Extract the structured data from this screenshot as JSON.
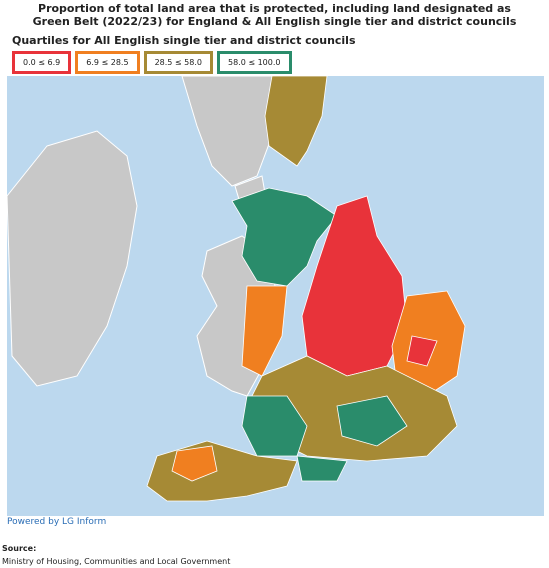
{
  "header": {
    "title": "Proportion of total land area that is protected, including land designated as Green Belt (2022/23) for England & All English single tier and district councils"
  },
  "legend": {
    "title": "Quartiles for All English single tier and district councils",
    "items": [
      {
        "label": "0.0 ≤ 6.9",
        "color": "#e8333a"
      },
      {
        "label": "6.9 ≤ 28.5",
        "color": "#f07f20"
      },
      {
        "label": "28.5 ≤ 58.0",
        "color": "#a68a35"
      },
      {
        "label": "58.0 ≤ 100.0",
        "color": "#2a8c6b"
      }
    ]
  },
  "footer": {
    "powered": "Powered by LG Inform",
    "source_label": "Source:",
    "source": "Ministry of Housing, Communities and Local Government"
  }
}
